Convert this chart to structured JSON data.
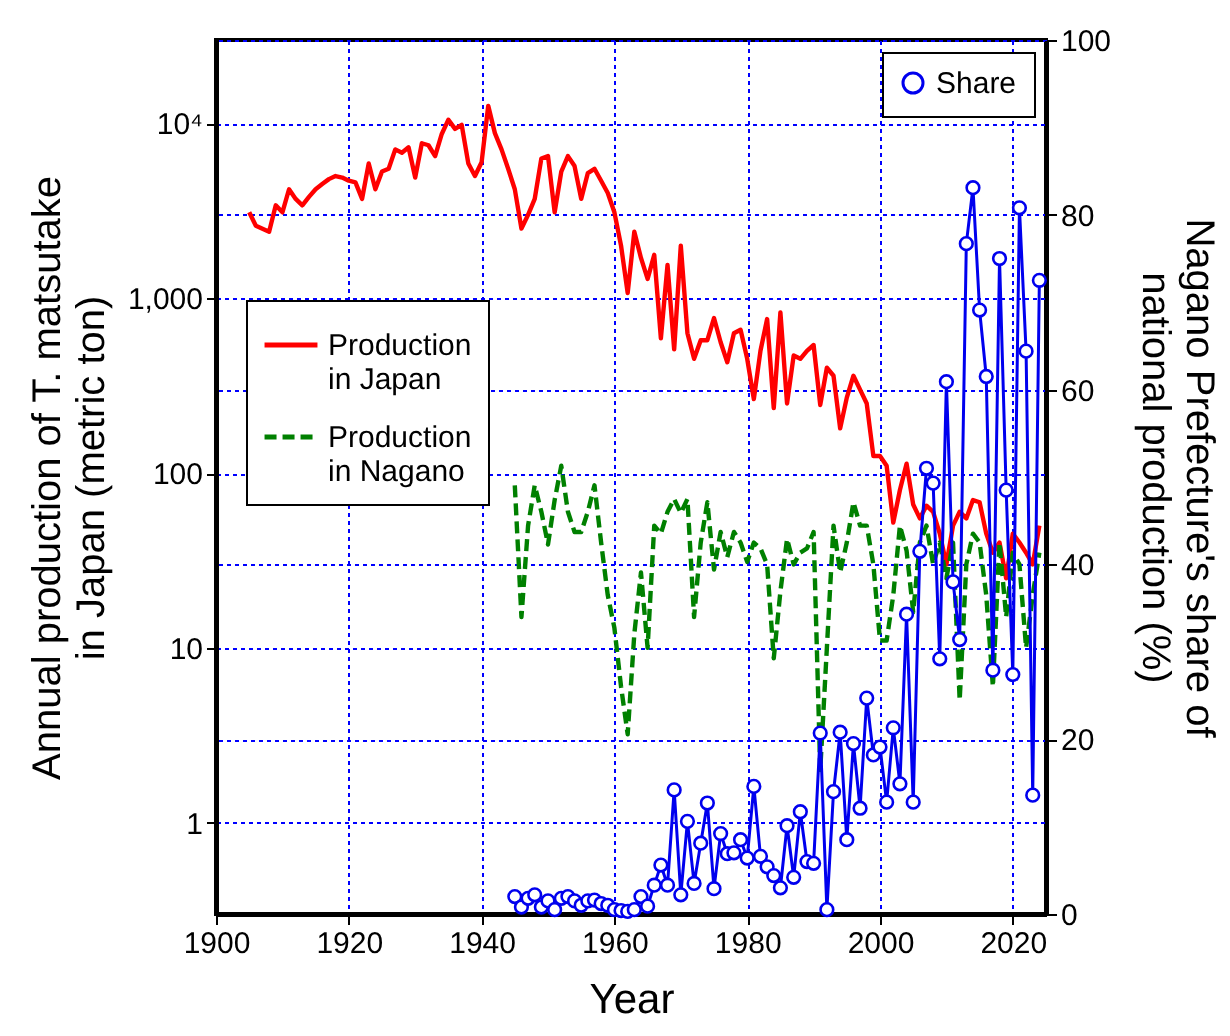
{
  "chart_data": {
    "type": "line",
    "xlabel": "Year",
    "ylabel": "Annual production of T. matsutake\nin Japan (metric ton)",
    "y2label": "Nagano Prefecture's share of\nnational production (%)",
    "x": [
      1905,
      1906,
      1907,
      1908,
      1909,
      1910,
      1911,
      1912,
      1913,
      1914,
      1915,
      1916,
      1917,
      1918,
      1919,
      1920,
      1921,
      1922,
      1923,
      1924,
      1925,
      1926,
      1927,
      1928,
      1929,
      1930,
      1931,
      1932,
      1933,
      1934,
      1935,
      1936,
      1937,
      1938,
      1939,
      1940,
      1941,
      1942,
      1943,
      1944,
      1945,
      1946,
      1947,
      1948,
      1949,
      1950,
      1951,
      1952,
      1953,
      1954,
      1955,
      1956,
      1957,
      1958,
      1959,
      1960,
      1961,
      1962,
      1963,
      1964,
      1965,
      1966,
      1967,
      1968,
      1969,
      1970,
      1971,
      1972,
      1973,
      1974,
      1975,
      1976,
      1977,
      1978,
      1979,
      1980,
      1981,
      1982,
      1983,
      1984,
      1985,
      1986,
      1987,
      1988,
      1989,
      1990,
      1991,
      1992,
      1993,
      1994,
      1995,
      1996,
      1997,
      1998,
      1999,
      2000,
      2001,
      2002,
      2003,
      2004,
      2005,
      2006,
      2007,
      2008,
      2009,
      2010,
      2011,
      2012,
      2013,
      2014,
      2015,
      2016,
      2017,
      2018,
      2019,
      2020,
      2021,
      2022,
      2023,
      2024
    ],
    "series": [
      {
        "name": "Production\nin Japan",
        "color": "#ff0000",
        "line_style": "solid",
        "values": [
          3100,
          2600,
          2500,
          2400,
          3400,
          3100,
          4200,
          3700,
          3400,
          3800,
          4200,
          4500,
          4800,
          5000,
          4900,
          4700,
          4600,
          3700,
          5900,
          4200,
          5300,
          5500,
          7100,
          6800,
          7300,
          4900,
          7700,
          7500,
          6500,
          8700,
          10500,
          9300,
          9800,
          5900,
          5000,
          6000,
          12600,
          8800,
          7100,
          5500,
          4200,
          2500,
          3000,
          3700,
          6300,
          6500,
          3100,
          5300,
          6500,
          5700,
          3700,
          5200,
          5500,
          4700,
          4000,
          3100,
          2000,
          1070,
          2400,
          1700,
          1290,
          1770,
          590,
          1550,
          510,
          2000,
          630,
          450,
          575,
          575,
          770,
          560,
          430,
          630,
          660,
          450,
          265,
          500,
          760,
          235,
          830,
          250,
          470,
          450,
          500,
          540,
          245,
          400,
          360,
          180,
          270,
          360,
          300,
          250,
          125,
          125,
          110,
          52,
          80,
          113,
          66,
          55,
          65,
          60,
          45,
          30,
          50,
          60,
          55,
          70,
          68,
          45,
          35,
          40,
          25,
          45,
          40,
          35,
          30,
          50
        ]
      },
      {
        "name": "Production\nin Nagano",
        "color": "#008000",
        "line_style": "dashed",
        "values": [
          null,
          null,
          null,
          null,
          null,
          null,
          null,
          null,
          null,
          null,
          null,
          null,
          null,
          null,
          null,
          null,
          null,
          null,
          null,
          null,
          null,
          null,
          null,
          null,
          null,
          null,
          null,
          null,
          null,
          null,
          null,
          null,
          null,
          null,
          null,
          null,
          null,
          null,
          null,
          null,
          85,
          15,
          50,
          85,
          60,
          39,
          70,
          110,
          60,
          46,
          46,
          60,
          85,
          40,
          20,
          13,
          6,
          3.2,
          12,
          27,
          10,
          50,
          45,
          60,
          71,
          59,
          71,
          15,
          40,
          68,
          28,
          46,
          33,
          46,
          40,
          31,
          40,
          37,
          30,
          8.7,
          21,
          42,
          30,
          35,
          37,
          46,
          2,
          10,
          50,
          27,
          40,
          68,
          50,
          50,
          30,
          11,
          11,
          20,
          50,
          36,
          16,
          40,
          50,
          30,
          40,
          25,
          40,
          5,
          30,
          45,
          40,
          20,
          6,
          40,
          15,
          35,
          30,
          10,
          20,
          35
        ]
      },
      {
        "name": "Share",
        "color": "#0000ee",
        "line_style": "solid",
        "marker": "circle",
        "axis": "y2",
        "values": [
          null,
          null,
          null,
          null,
          null,
          null,
          null,
          null,
          null,
          null,
          null,
          null,
          null,
          null,
          null,
          null,
          null,
          null,
          null,
          null,
          null,
          null,
          null,
          null,
          null,
          null,
          null,
          null,
          null,
          null,
          null,
          null,
          null,
          null,
          null,
          null,
          null,
          null,
          null,
          null,
          2.0,
          0.8,
          1.8,
          2.2,
          0.8,
          1.5,
          0.5,
          1.8,
          2.0,
          1.5,
          1.0,
          1.5,
          1.6,
          1.2,
          1.0,
          0.5,
          0.4,
          0.3,
          0.5,
          2.0,
          0.9,
          3.3,
          5.6,
          3.3,
          14.2,
          2.2,
          10.6,
          3.5,
          8.1,
          12.7,
          2.9,
          9.2,
          6.9,
          7.0,
          8.5,
          6.4,
          14.6,
          6.6,
          5.4,
          4.4,
          3.0,
          10.1,
          4.2,
          11.7,
          6.0,
          5.8,
          20.7,
          0.5,
          14.0,
          20.8,
          8.5,
          19.5,
          12.1,
          24.7,
          18.2,
          19.1,
          12.8,
          21.3,
          14.9,
          34.3,
          12.8,
          41.5,
          51.0,
          49.3,
          29.2,
          60.9,
          38,
          31.4,
          76.7,
          83.1,
          69.1,
          61.5,
          27.9,
          75.0,
          48.5,
          27.4,
          80.8,
          64.4,
          13.6,
          72.5
        ]
      }
    ],
    "xlim": [
      1900,
      2025
    ],
    "xticks": [
      1900,
      1920,
      1940,
      1960,
      1980,
      2000,
      2020
    ],
    "log": "y",
    "ylim": [
      0.3,
      30000
    ],
    "yticks": [
      1,
      10,
      100,
      {
        "value": 1000,
        "label": "1,000"
      },
      {
        "value": 10000,
        "label": "10⁴"
      }
    ],
    "y2lim": [
      0,
      100
    ],
    "y2ticks": [
      0,
      20,
      40,
      60,
      80,
      100
    ],
    "grid": true,
    "legend": "top right"
  }
}
